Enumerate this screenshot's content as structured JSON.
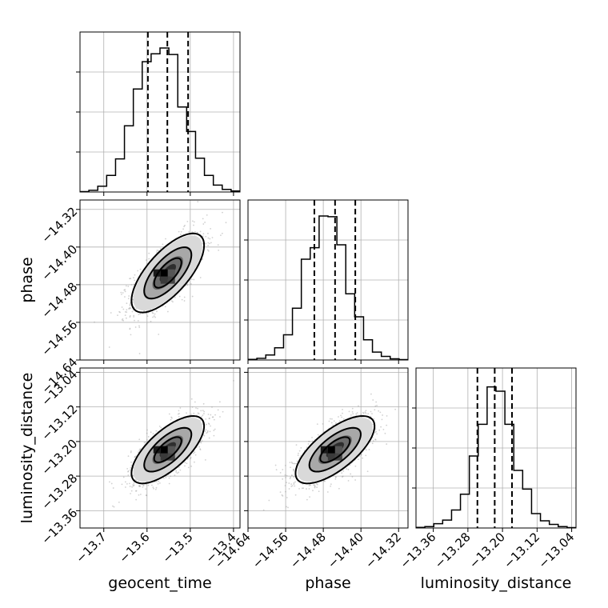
{
  "chart_data": {
    "type": "corner",
    "parameters": [
      {
        "name": "geocent_time",
        "label": "geocent_time",
        "mean": -13.552,
        "sd": 0.042,
        "range": [
          -13.755,
          -13.385
        ],
        "ticks": [
          -13.7,
          -13.6,
          -13.5,
          -13.4
        ],
        "tick_labels": [
          "−13.7",
          "−13.6",
          "−13.5",
          "−13.4"
        ],
        "quantiles": [
          -13.598,
          -13.553,
          -13.505
        ],
        "hist": [
          0.003,
          0.012,
          0.04,
          0.115,
          0.23,
          0.46,
          0.715,
          0.905,
          0.96,
          1.0,
          0.955,
          0.59,
          0.42,
          0.235,
          0.115,
          0.048,
          0.018,
          0.007
        ]
      },
      {
        "name": "phase",
        "label": "phase",
        "mean": -14.455,
        "sd": 0.042,
        "range": [
          -14.64,
          -14.3
        ],
        "ticks": [
          -14.64,
          -14.56,
          -14.48,
          -14.4,
          -14.32
        ],
        "tick_labels": [
          "−14.64",
          "−14.56",
          "−14.48",
          "−14.40",
          "−14.32"
        ],
        "quantiles": [
          -14.499,
          -14.455,
          -14.412
        ],
        "hist": [
          0.004,
          0.012,
          0.035,
          0.085,
          0.175,
          0.36,
          0.7,
          0.78,
          1.0,
          0.995,
          0.8,
          0.46,
          0.3,
          0.14,
          0.055,
          0.025,
          0.008,
          0.003
        ]
      },
      {
        "name": "luminosity_distance",
        "label": "luminosity_distance",
        "mean": -13.219,
        "sd": 0.039,
        "range": [
          -13.4,
          -13.03
        ],
        "ticks": [
          -13.36,
          -13.28,
          -13.2,
          -13.12,
          -13.04
        ],
        "tick_labels": [
          "−13.36",
          "−13.28",
          "−13.20",
          "−13.12",
          "−13.04"
        ],
        "quantiles": [
          -13.258,
          -13.218,
          -13.178
        ],
        "hist": [
          0.004,
          0.01,
          0.03,
          0.055,
          0.125,
          0.235,
          0.5,
          0.72,
          0.98,
          0.95,
          0.72,
          0.4,
          0.27,
          0.1,
          0.05,
          0.025,
          0.01,
          0.003
        ]
      }
    ],
    "correlations": {
      "1,0": 0.7,
      "2,0": 0.7,
      "2,1": 0.7
    },
    "grid": true
  }
}
